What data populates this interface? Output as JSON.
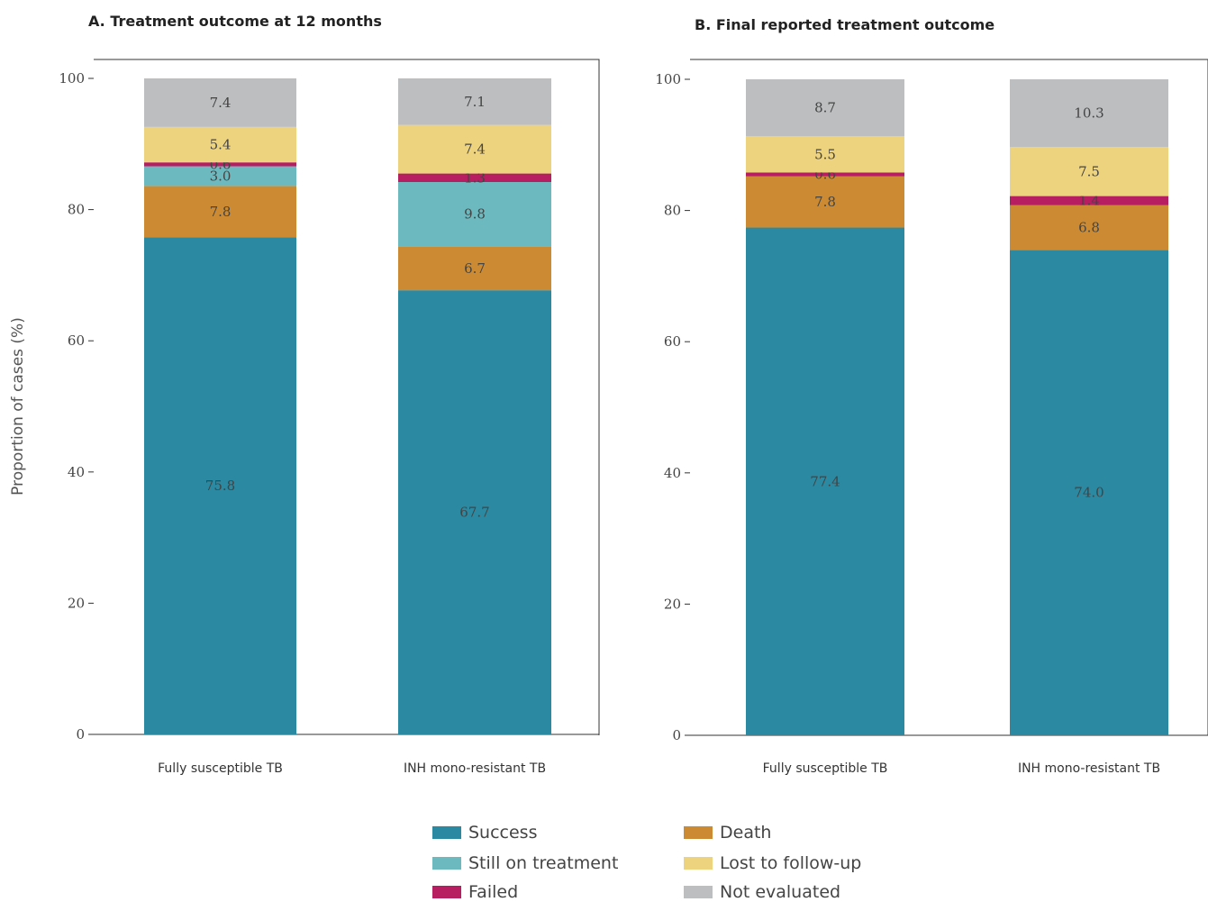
{
  "chart_data": [
    {
      "type": "bar",
      "stacked": true,
      "title": "A. Treatment outcome at 12 months",
      "ylabel": "Proportion of cases (%)",
      "ylim": [
        0,
        100
      ],
      "yticks": [
        0,
        20,
        40,
        60,
        80,
        100
      ],
      "categories": [
        "Fully susceptible TB",
        "INH mono-resistant TB"
      ],
      "series": [
        {
          "name": "Success",
          "values": [
            75.8,
            67.7
          ]
        },
        {
          "name": "Death",
          "values": [
            7.8,
            6.7
          ]
        },
        {
          "name": "Still on treatment",
          "values": [
            3.0,
            9.8
          ]
        },
        {
          "name": "Failed",
          "values": [
            0.6,
            1.3
          ]
        },
        {
          "name": "Lost to follow-up",
          "values": [
            5.4,
            7.4
          ]
        },
        {
          "name": "Not evaluated",
          "values": [
            7.4,
            7.1
          ]
        }
      ]
    },
    {
      "type": "bar",
      "stacked": true,
      "title": "B. Final reported treatment outcome",
      "ylim": [
        0,
        100
      ],
      "yticks": [
        0,
        20,
        40,
        60,
        80,
        100
      ],
      "categories": [
        "Fully susceptible TB",
        "INH mono-resistant TB"
      ],
      "series": [
        {
          "name": "Success",
          "values": [
            77.4,
            74.0
          ]
        },
        {
          "name": "Death",
          "values": [
            7.8,
            6.8
          ]
        },
        {
          "name": "Still on treatment",
          "values": [
            0,
            0
          ]
        },
        {
          "name": "Failed",
          "values": [
            0.6,
            1.4
          ]
        },
        {
          "name": "Lost to follow-up",
          "values": [
            5.5,
            7.5
          ]
        },
        {
          "name": "Not evaluated",
          "values": [
            8.7,
            10.3
          ]
        }
      ]
    }
  ],
  "colors": {
    "Success": "#2b89a2",
    "Death": "#cc8b32",
    "Still on treatment": "#6cbabf",
    "Failed": "#b71e61",
    "Lost to follow-up": "#eed37f",
    "Not evaluated": "#bcbec0"
  },
  "legend": {
    "items": [
      "Success",
      "Death",
      "Still on treatment",
      "Lost to follow-up",
      "Failed",
      "Not evaluated"
    ]
  }
}
